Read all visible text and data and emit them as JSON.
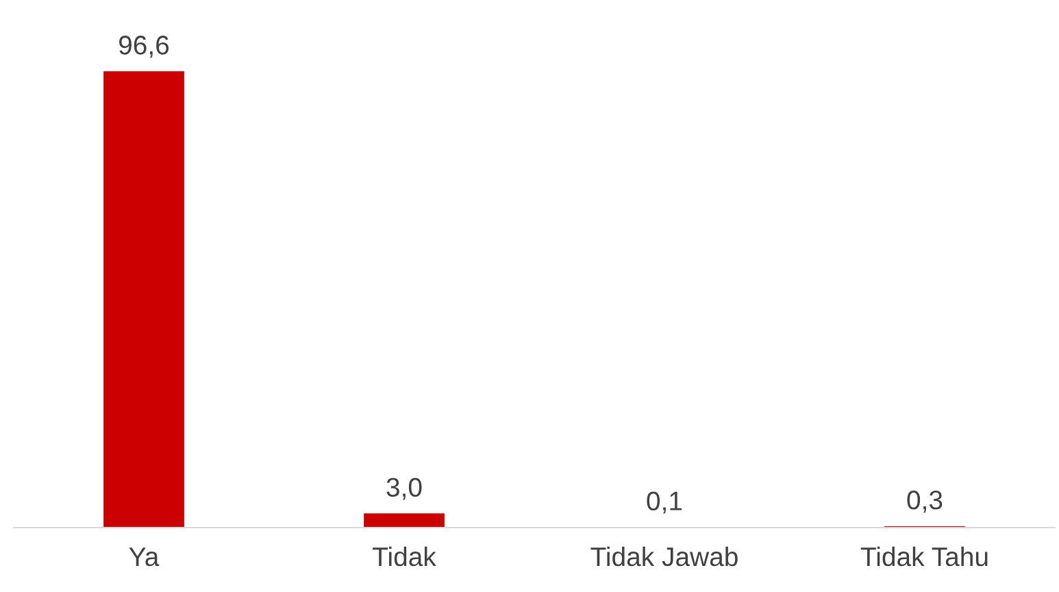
{
  "chart_data": {
    "type": "bar",
    "categories": [
      "Ya",
      "Tidak",
      "Tidak Jawab",
      "Tidak Tahu"
    ],
    "values": [
      96.6,
      3.0,
      0.1,
      0.3
    ],
    "value_labels": [
      "96,6",
      "3,0",
      "0,1",
      "0,3"
    ],
    "color": "#cc0000"
  }
}
